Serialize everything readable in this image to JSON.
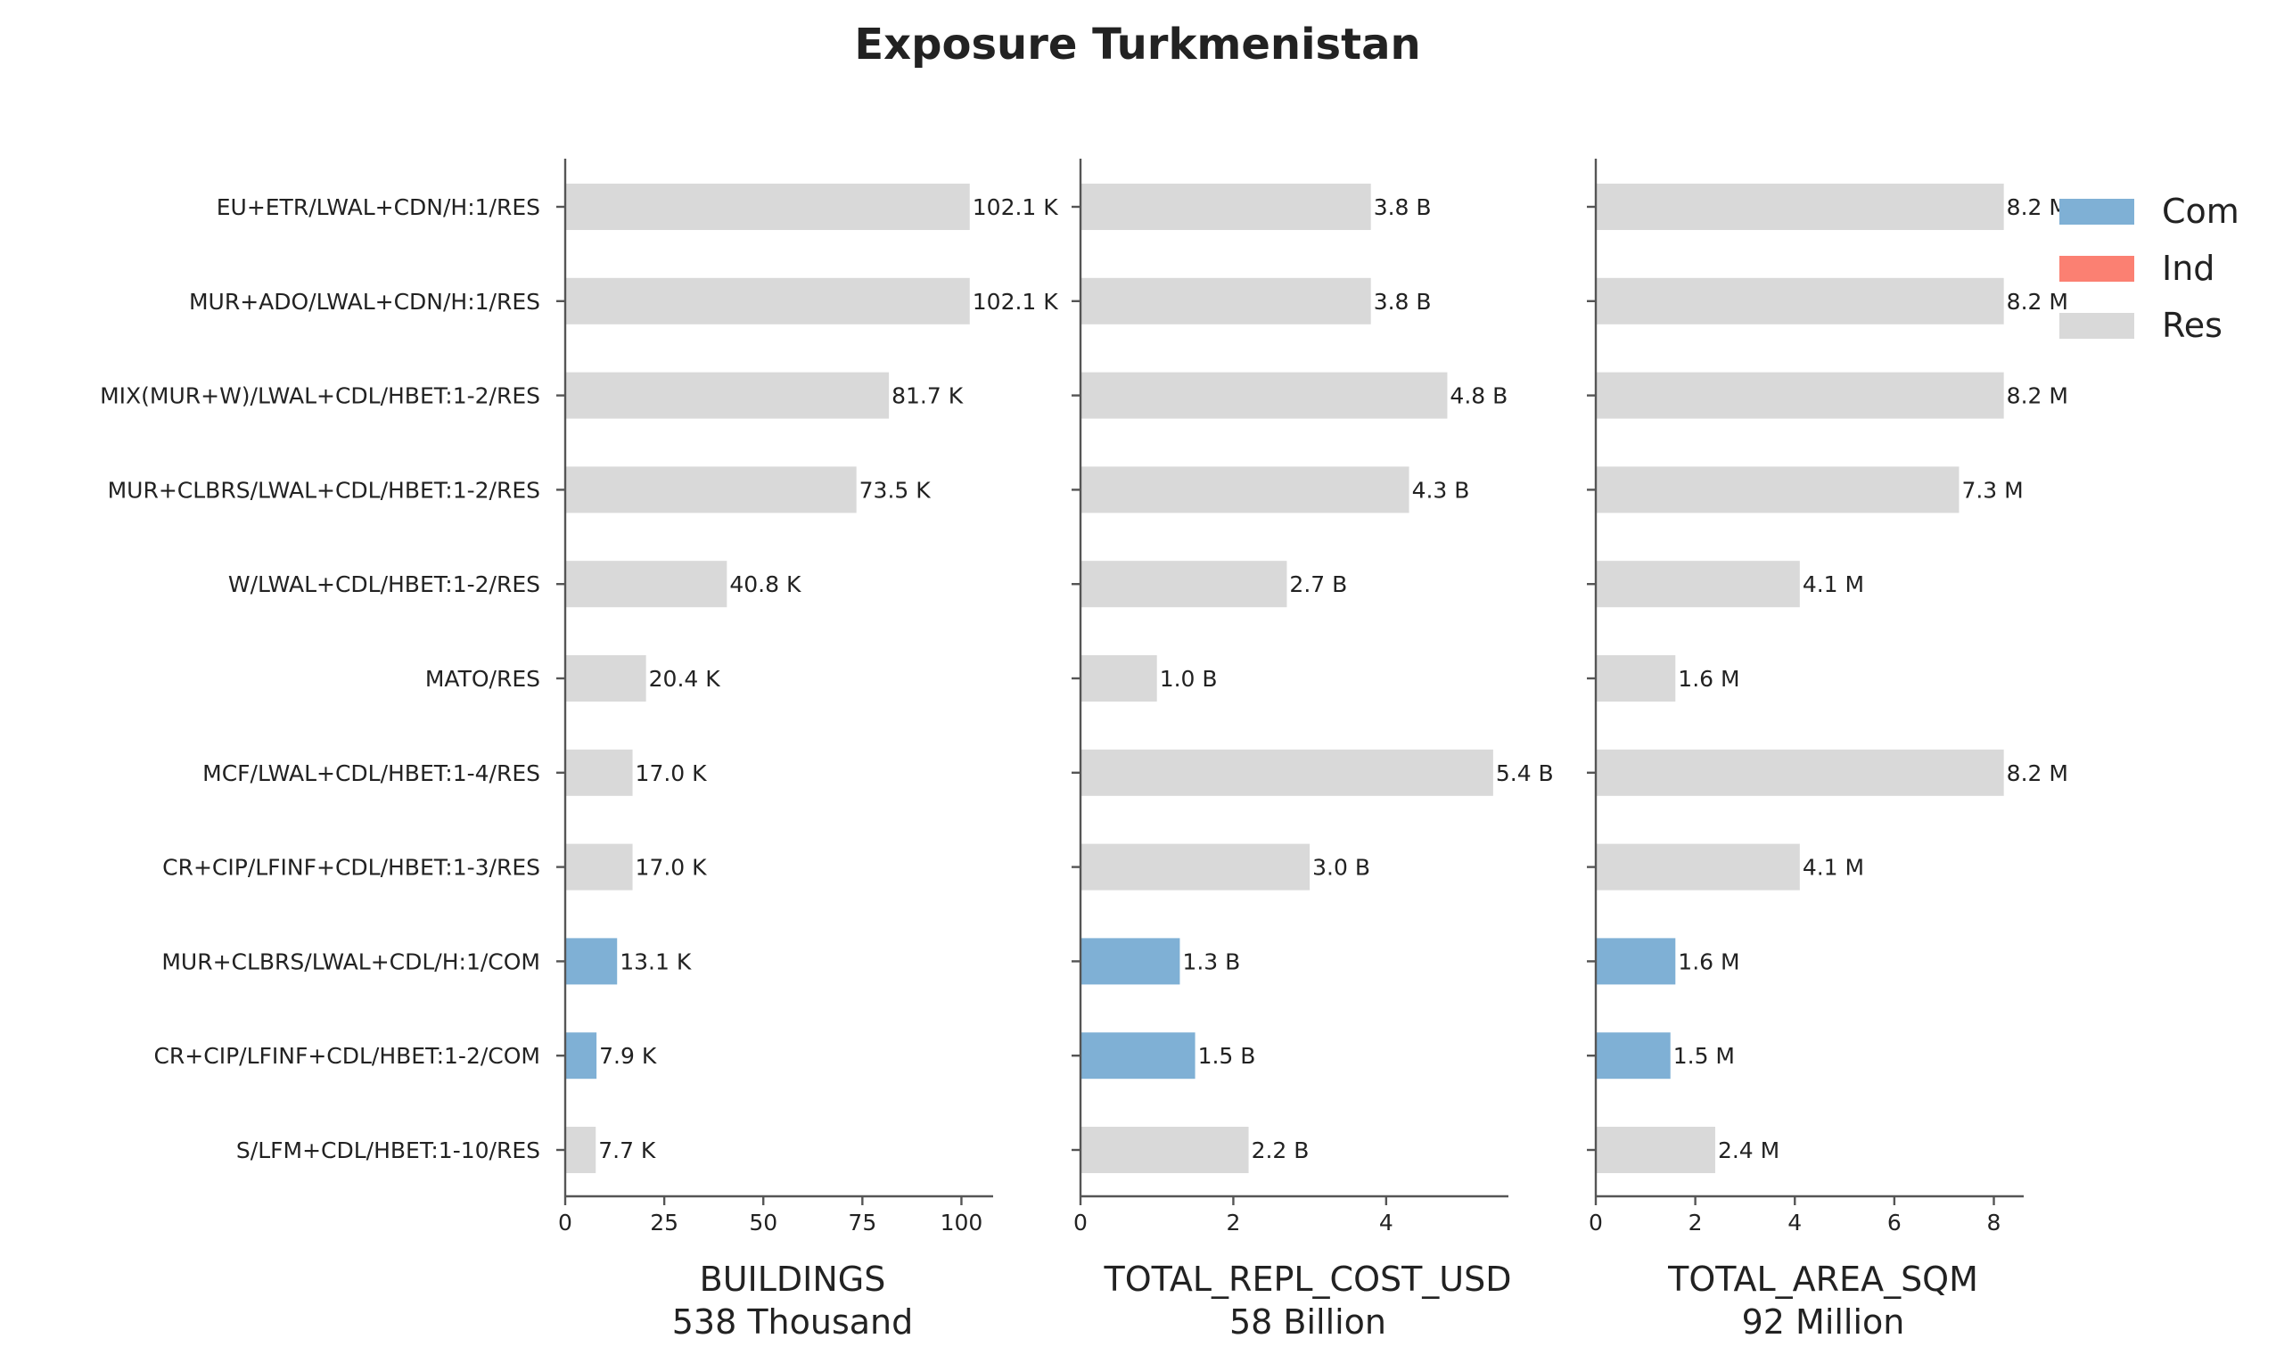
{
  "chart_data": {
    "type": "bar",
    "orientation": "horizontal",
    "title": "Exposure Turkmenistan",
    "categories": [
      "EU+ETR/LWAL+CDN/H:1/RES",
      "MUR+ADO/LWAL+CDN/H:1/RES",
      "MIX(MUR+W)/LWAL+CDL/HBET:1-2/RES",
      "MUR+CLBRS/LWAL+CDL/HBET:1-2/RES",
      "W/LWAL+CDL/HBET:1-2/RES",
      "MATO/RES",
      "MCF/LWAL+CDL/HBET:1-4/RES",
      "CR+CIP/LFINF+CDL/HBET:1-3/RES",
      "MUR+CLBRS/LWAL+CDL/H:1/COM",
      "CR+CIP/LFINF+CDL/HBET:1-2/COM",
      "S/LFM+CDL/HBET:1-10/RES"
    ],
    "occupancy": [
      "Res",
      "Res",
      "Res",
      "Res",
      "Res",
      "Res",
      "Res",
      "Res",
      "Com",
      "Com",
      "Res"
    ],
    "legend": {
      "position": "top-right",
      "entries": [
        {
          "name": "Com",
          "color": "#7fb0d5"
        },
        {
          "name": "Ind",
          "color": "#fb8072"
        },
        {
          "name": "Res",
          "color": "#d9d9d9"
        }
      ]
    },
    "grid": false,
    "panels": [
      {
        "xlabel": "BUILDINGS",
        "subtitle": "538 Thousand",
        "xlim": [
          0,
          108
        ],
        "xticks": [
          0,
          25,
          50,
          75,
          100
        ],
        "values": [
          102.1,
          102.1,
          81.7,
          73.5,
          40.8,
          20.4,
          17.0,
          17.0,
          13.1,
          7.9,
          7.7
        ],
        "labels": [
          "102.1 K",
          "102.1 K",
          "81.7 K",
          "73.5 K",
          "40.8 K",
          "20.4 K",
          "17.0 K",
          "17.0 K",
          "13.1 K",
          "7.9 K",
          "7.7 K"
        ]
      },
      {
        "xlabel": "TOTAL_REPL_COST_USD",
        "subtitle": "58 Billion",
        "xlim": [
          0,
          5.6
        ],
        "xticks": [
          0,
          2,
          4
        ],
        "values": [
          3.8,
          3.8,
          4.8,
          4.3,
          2.7,
          1.0,
          5.4,
          3.0,
          1.3,
          1.5,
          2.2
        ],
        "labels": [
          "3.8 B",
          "3.8 B",
          "4.8 B",
          "4.3 B",
          "2.7 B",
          "1.0 B",
          "5.4 B",
          "3.0 B",
          "1.3 B",
          "1.5 B",
          "2.2 B"
        ]
      },
      {
        "xlabel": "TOTAL_AREA_SQM",
        "subtitle": "92 Million",
        "xlim": [
          0,
          8.6
        ],
        "xticks": [
          0,
          2,
          4,
          6,
          8
        ],
        "values": [
          8.2,
          8.2,
          8.2,
          7.3,
          4.1,
          1.6,
          8.2,
          4.1,
          1.6,
          1.5,
          2.4
        ],
        "labels": [
          "8.2 M",
          "8.2 M",
          "8.2 M",
          "7.3 M",
          "4.1 M",
          "1.6 M",
          "8.2 M",
          "4.1 M",
          "1.6 M",
          "1.5 M",
          "2.4 M"
        ]
      }
    ]
  }
}
